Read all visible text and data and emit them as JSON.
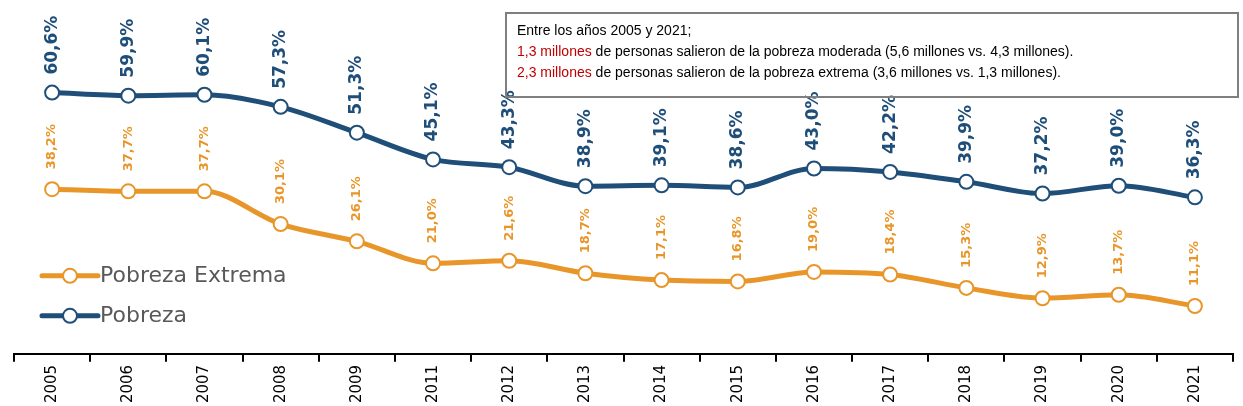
{
  "chart_data": {
    "type": "line",
    "categories": [
      "2005",
      "2006",
      "2007",
      "2008",
      "2009",
      "2011",
      "2012",
      "2013",
      "2014",
      "2015",
      "2016",
      "2017",
      "2018",
      "2019",
      "2020",
      "2021"
    ],
    "series": [
      {
        "name": "Pobreza Extrema",
        "color": "#e8962a",
        "values": [
          38.2,
          37.7,
          37.7,
          30.1,
          26.1,
          21.0,
          21.6,
          18.7,
          17.1,
          16.8,
          19.0,
          18.4,
          15.3,
          12.9,
          13.7,
          11.1
        ],
        "value_labels": [
          "38,2%",
          "37,7%",
          "37,7%",
          "30,1%",
          "26,1%",
          "21,0%",
          "21,6%",
          "18,7%",
          "17,1%",
          "16,8%",
          "19,0%",
          "18,4%",
          "15,3%",
          "12,9%",
          "13,7%",
          "11,1%"
        ]
      },
      {
        "name": "Pobreza",
        "color": "#1f4e79",
        "values": [
          60.6,
          59.9,
          60.1,
          57.3,
          51.3,
          45.1,
          43.3,
          38.9,
          39.1,
          38.6,
          43.0,
          42.2,
          39.9,
          37.2,
          39.0,
          36.3
        ],
        "value_labels": [
          "60,6%",
          "59,9%",
          "60,1%",
          "57,3%",
          "51,3%",
          "45,1%",
          "43,3%",
          "38,9%",
          "39,1%",
          "38,6%",
          "43,0%",
          "42,2%",
          "39,9%",
          "37,2%",
          "39,0%",
          "36,3%"
        ]
      }
    ],
    "tick_labels": "x",
    "marker": "circle",
    "line_style": "solid",
    "legend": "bottom left",
    "annotations": [
      "Entre los años 2005 y 2021;",
      "1,3 millones de personas salieron de la pobreza moderada (5,6 millones vs. 4,3 millones).",
      "2,3 millones de personas salieron de la pobreza extrema (3,6 millones vs. 1,3 millones)."
    ]
  }
}
